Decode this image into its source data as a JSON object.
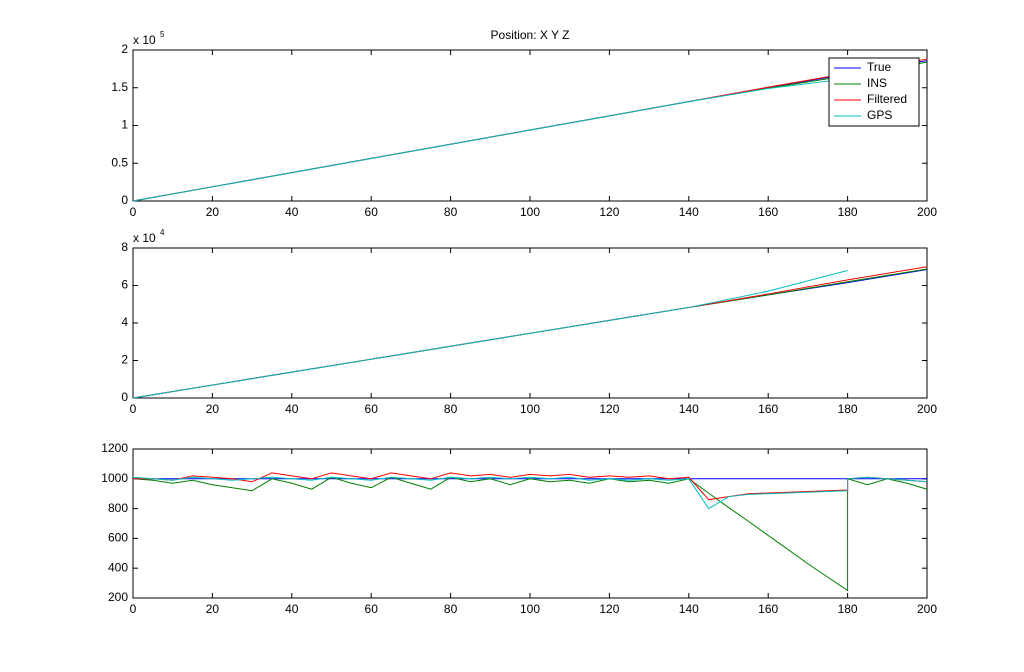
{
  "chart_data": [
    {
      "type": "line",
      "title": "Position: X Y Z",
      "x": [
        0,
        20,
        40,
        60,
        80,
        100,
        120,
        140,
        160,
        180,
        200
      ],
      "xlim": [
        0,
        200
      ],
      "xticks": [
        0,
        20,
        40,
        60,
        80,
        100,
        120,
        140,
        160,
        180,
        200
      ],
      "ylim": [
        0,
        200000
      ],
      "yticks": [
        0,
        {
          "value": 50000,
          "label": "0.5"
        },
        {
          "value": 100000,
          "label": "1"
        },
        {
          "value": 150000,
          "label": "1.5"
        },
        {
          "value": 200000,
          "label": "2"
        }
      ],
      "y_exponent": {
        "base": "x 10",
        "power": "5"
      },
      "legend": "upper right",
      "series": [
        {
          "name": "True",
          "color": "#0000ff",
          "values": [
            0,
            18800,
            37600,
            56400,
            75200,
            94000,
            112800,
            131600,
            150400,
            168000,
            186000
          ]
        },
        {
          "name": "INS",
          "color": "#008000",
          "values": [
            0,
            18800,
            37600,
            56400,
            75200,
            94000,
            112800,
            131600,
            149500,
            166000,
            184000
          ]
        },
        {
          "name": "Filtered",
          "color": "#ff0000",
          "values": [
            0,
            18800,
            37600,
            56400,
            75200,
            94000,
            112800,
            131600,
            150800,
            169000,
            188000
          ]
        },
        {
          "name": "GPS",
          "color": "#00bfbf",
          "values": [
            0,
            18800,
            37600,
            56400,
            75200,
            94000,
            112800,
            131600,
            149000,
            162000,
            null
          ]
        }
      ]
    },
    {
      "type": "line",
      "x": [
        0,
        20,
        40,
        60,
        80,
        100,
        120,
        140,
        160,
        180,
        200
      ],
      "xlim": [
        0,
        200
      ],
      "xticks": [
        0,
        20,
        40,
        60,
        80,
        100,
        120,
        140,
        160,
        180,
        200
      ],
      "ylim": [
        0,
        80000
      ],
      "yticks": [
        0,
        {
          "value": 20000,
          "label": "2"
        },
        {
          "value": 40000,
          "label": "4"
        },
        {
          "value": 60000,
          "label": "6"
        },
        {
          "value": 80000,
          "label": "8"
        }
      ],
      "y_exponent": {
        "base": "x 10",
        "power": "4"
      },
      "series": [
        {
          "color": "#0000ff",
          "values": [
            0,
            6900,
            13800,
            20700,
            27600,
            34500,
            41400,
            48300,
            55000,
            61500,
            68500
          ]
        },
        {
          "color": "#008000",
          "values": [
            0,
            6900,
            13800,
            20700,
            27600,
            34500,
            41400,
            48300,
            55000,
            62000,
            68800
          ]
        },
        {
          "color": "#ff0000",
          "values": [
            0,
            6900,
            13800,
            20700,
            27600,
            34500,
            41400,
            48300,
            55500,
            63000,
            70000
          ]
        },
        {
          "color": "#00bfbf",
          "values": [
            0,
            6900,
            13800,
            20700,
            27600,
            34500,
            41400,
            48300,
            57000,
            68000,
            null
          ]
        }
      ]
    },
    {
      "type": "line",
      "x": [
        0,
        5,
        10,
        15,
        20,
        25,
        30,
        35,
        40,
        45,
        50,
        55,
        60,
        65,
        70,
        75,
        80,
        85,
        90,
        95,
        100,
        105,
        110,
        115,
        120,
        125,
        130,
        135,
        140,
        145,
        150,
        155,
        160,
        165,
        170,
        175,
        180,
        180,
        185,
        190,
        195,
        200
      ],
      "xlim": [
        0,
        200
      ],
      "xticks": [
        0,
        20,
        40,
        60,
        80,
        100,
        120,
        140,
        160,
        180,
        200
      ],
      "ylim": [
        200,
        1200
      ],
      "yticks": [
        200,
        400,
        600,
        800,
        1000,
        1200
      ],
      "series": [
        {
          "color": "#0000ff",
          "values": [
            1000,
            1000,
            1000,
            1000,
            1000,
            1000,
            1000,
            1000,
            1000,
            1000,
            1000,
            1000,
            1000,
            1000,
            1000,
            1000,
            1000,
            1000,
            1000,
            1000,
            1000,
            1000,
            1000,
            1000,
            1000,
            1000,
            1000,
            1000,
            1000,
            1000,
            1000,
            1000,
            1000,
            1000,
            1000,
            1000,
            1000,
            1000,
            1000,
            1000,
            1000,
            1000
          ]
        },
        {
          "color": "#008000",
          "values": [
            1000,
            990,
            970,
            990,
            960,
            940,
            920,
            1000,
            970,
            930,
            1010,
            970,
            940,
            1010,
            970,
            930,
            1010,
            980,
            1000,
            960,
            1000,
            980,
            990,
            970,
            1000,
            980,
            990,
            970,
            1000,
            904,
            808,
            715,
            620,
            525,
            430,
            340,
            250,
            1000,
            960,
            1000,
            970,
            930
          ]
        },
        {
          "color": "#ff0000",
          "values": [
            1000,
            1000,
            990,
            1020,
            1010,
            1000,
            980,
            1040,
            1020,
            1000,
            1040,
            1020,
            1000,
            1040,
            1020,
            1000,
            1040,
            1020,
            1030,
            1010,
            1030,
            1020,
            1030,
            1010,
            1020,
            1010,
            1020,
            1000,
            1010,
            860,
            880,
            900,
            905,
            910,
            915,
            920,
            925,
            1000,
            1010,
            1000,
            990,
            980
          ]
        },
        {
          "color": "#00bfbf",
          "values": [
            1010,
            1000,
            990,
            1010,
            1000,
            990,
            1000,
            1010,
            1000,
            990,
            1010,
            1000,
            990,
            1010,
            1000,
            990,
            1010,
            1000,
            1010,
            1000,
            1010,
            1000,
            1010,
            990,
            1000,
            990,
            1000,
            990,
            1000,
            800,
            880,
            895,
            900,
            905,
            910,
            915,
            920,
            1000,
            1010,
            1000,
            990,
            980
          ]
        }
      ]
    }
  ]
}
